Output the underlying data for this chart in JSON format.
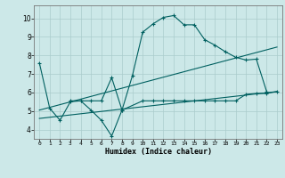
{
  "xlabel": "Humidex (Indice chaleur)",
  "bg_color": "#cce8e8",
  "grid_color": "#aacccc",
  "line_color": "#006060",
  "xlim": [
    -0.5,
    23.5
  ],
  "ylim": [
    3.5,
    10.7
  ],
  "xticks": [
    0,
    1,
    2,
    3,
    4,
    5,
    6,
    7,
    8,
    9,
    10,
    11,
    12,
    13,
    14,
    15,
    16,
    17,
    18,
    19,
    20,
    21,
    22,
    23
  ],
  "yticks": [
    4,
    5,
    6,
    7,
    8,
    9,
    10
  ],
  "series": [
    {
      "x": [
        0,
        1,
        2,
        3,
        4,
        5,
        6,
        7,
        8,
        9,
        10,
        11,
        12,
        13,
        14,
        15,
        16,
        17,
        18,
        19,
        20,
        21,
        22
      ],
      "y": [
        7.6,
        5.15,
        4.5,
        5.5,
        5.55,
        5.05,
        4.5,
        3.65,
        5.05,
        6.9,
        9.25,
        9.7,
        10.05,
        10.15,
        9.65,
        9.65,
        8.85,
        8.55,
        8.2,
        7.9,
        7.75,
        7.8,
        6.05
      ]
    },
    {
      "x": [
        3,
        4,
        5,
        6,
        7,
        8,
        10,
        11,
        12,
        13,
        14,
        15,
        16,
        17,
        18,
        19,
        20,
        21,
        22,
        23
      ],
      "y": [
        5.55,
        5.55,
        5.55,
        5.55,
        6.8,
        5.05,
        5.55,
        5.55,
        5.55,
        5.55,
        5.55,
        5.55,
        5.55,
        5.55,
        5.55,
        5.55,
        5.9,
        5.95,
        5.95,
        6.05
      ]
    },
    {
      "x": [
        0,
        23
      ],
      "y": [
        4.6,
        6.05
      ]
    },
    {
      "x": [
        0,
        23
      ],
      "y": [
        5.05,
        8.45
      ]
    }
  ]
}
